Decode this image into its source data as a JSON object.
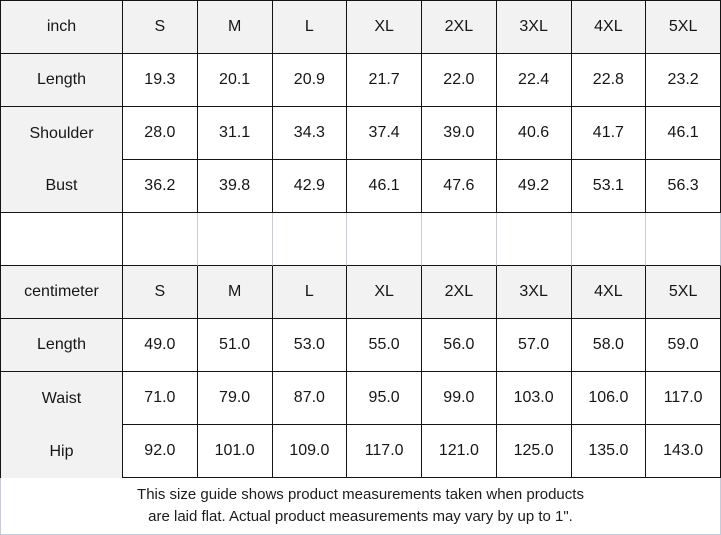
{
  "colors": {
    "grid_border": "#141414",
    "header_bg": "#f2f2f2",
    "cell_bg": "#ffffff",
    "spacer_border": "#c3cdde",
    "note_border": "#c3cdde",
    "text": "#161616"
  },
  "chart_data": [
    {
      "type": "table",
      "title": "inch size chart",
      "unit": "inch",
      "columns": [
        "inch",
        "S",
        "M",
        "L",
        "XL",
        "2XL",
        "3XL",
        "4XL",
        "5XL"
      ],
      "rows": [
        [
          "Length",
          "19.3",
          "20.1",
          "20.9",
          "21.7",
          "22.0",
          "22.4",
          "22.8",
          "23.2"
        ],
        [
          "Shoulder",
          "28.0",
          "31.1",
          "34.3",
          "37.4",
          "39.0",
          "40.6",
          "41.7",
          "46.1"
        ],
        [
          "Bust",
          "36.2",
          "39.8",
          "42.9",
          "46.1",
          "47.6",
          "49.2",
          "53.1",
          "56.3"
        ]
      ]
    },
    {
      "type": "table",
      "title": "centimeter size chart",
      "unit": "centimeter",
      "columns": [
        "centimeter",
        "S",
        "M",
        "L",
        "XL",
        "2XL",
        "3XL",
        "4XL",
        "5XL"
      ],
      "rows": [
        [
          "Length",
          "49.0",
          "51.0",
          "53.0",
          "55.0",
          "56.0",
          "57.0",
          "58.0",
          "59.0"
        ],
        [
          "Waist",
          "71.0",
          "79.0",
          "87.0",
          "95.0",
          "99.0",
          "103.0",
          "106.0",
          "117.0"
        ],
        [
          "Hip",
          "92.0",
          "101.0",
          "109.0",
          "117.0",
          "121.0",
          "125.0",
          "135.0",
          "143.0"
        ]
      ]
    }
  ],
  "note": {
    "line1": "This size guide shows product measurements taken when products",
    "line2": "are laid flat. Actual product measurements may vary by up to 1\"."
  }
}
